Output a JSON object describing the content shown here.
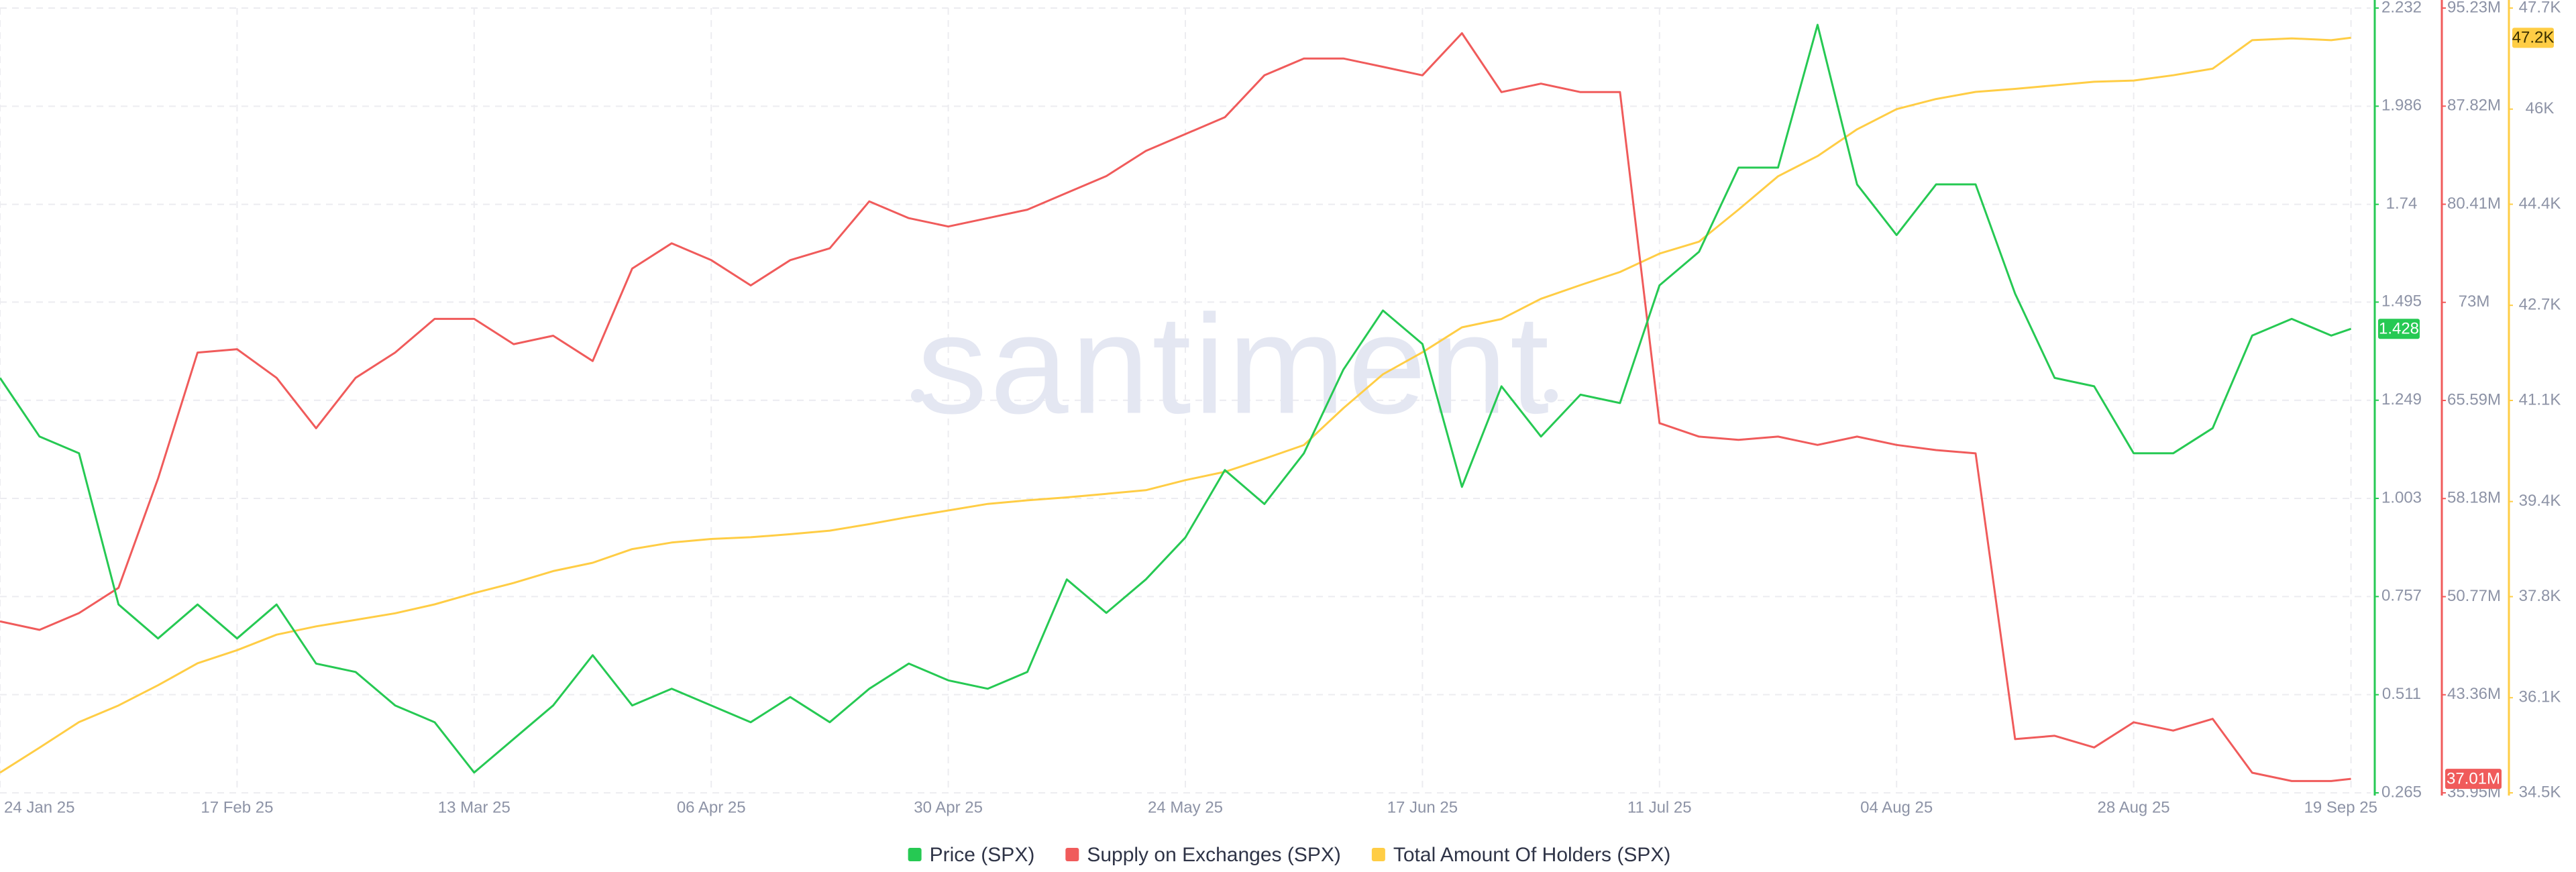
{
  "chart_data": {
    "type": "line",
    "watermark": "santiment",
    "x": [
      "2025-01-24",
      "2025-01-28",
      "2025-02-01",
      "2025-02-05",
      "2025-02-09",
      "2025-02-13",
      "2025-02-17",
      "2025-02-21",
      "2025-02-25",
      "2025-03-01",
      "2025-03-05",
      "2025-03-09",
      "2025-03-13",
      "2025-03-17",
      "2025-03-21",
      "2025-03-25",
      "2025-03-29",
      "2025-04-02",
      "2025-04-06",
      "2025-04-10",
      "2025-04-14",
      "2025-04-18",
      "2025-04-22",
      "2025-04-26",
      "2025-04-30",
      "2025-05-04",
      "2025-05-08",
      "2025-05-12",
      "2025-05-16",
      "2025-05-20",
      "2025-05-24",
      "2025-05-28",
      "2025-06-01",
      "2025-06-05",
      "2025-06-09",
      "2025-06-13",
      "2025-06-17",
      "2025-06-21",
      "2025-06-25",
      "2025-06-29",
      "2025-07-03",
      "2025-07-07",
      "2025-07-11",
      "2025-07-15",
      "2025-07-19",
      "2025-07-23",
      "2025-07-27",
      "2025-07-31",
      "2025-08-04",
      "2025-08-08",
      "2025-08-12",
      "2025-08-16",
      "2025-08-20",
      "2025-08-24",
      "2025-08-28",
      "2025-09-01",
      "2025-09-05",
      "2025-09-09",
      "2025-09-13",
      "2025-09-17",
      "2025-09-19"
    ],
    "xlim": [
      "2025-01-24",
      "2025-09-21"
    ],
    "xticks": [
      {
        "value": "2025-01-24",
        "label": "24 Jan 25"
      },
      {
        "value": "2025-02-17",
        "label": "17 Feb 25"
      },
      {
        "value": "2025-03-13",
        "label": "13 Mar 25"
      },
      {
        "value": "2025-04-06",
        "label": "06 Apr 25"
      },
      {
        "value": "2025-04-30",
        "label": "30 Apr 25"
      },
      {
        "value": "2025-05-24",
        "label": "24 May 25"
      },
      {
        "value": "2025-06-17",
        "label": "17 Jun 25"
      },
      {
        "value": "2025-07-11",
        "label": "11 Jul 25"
      },
      {
        "value": "2025-08-04",
        "label": "04 Aug 25"
      },
      {
        "value": "2025-08-28",
        "label": "28 Aug 25"
      },
      {
        "value": "2025-09-19",
        "label": "19 Sep 25"
      }
    ],
    "ylim": [
      0.265,
      2.232
    ],
    "yticks": [
      0.265,
      0.511,
      0.757,
      1.003,
      1.249,
      1.495,
      1.74,
      1.986,
      2.232
    ],
    "y2lim": [
      35.95,
      95.23
    ],
    "y2ticks": [
      {
        "value": 35.95,
        "label": "35.95M"
      },
      {
        "value": 43.36,
        "label": "43.36M"
      },
      {
        "value": 50.77,
        "label": "50.77M"
      },
      {
        "value": 58.18,
        "label": "58.18M"
      },
      {
        "value": 65.59,
        "label": "65.59M"
      },
      {
        "value": 73,
        "label": "73M"
      },
      {
        "value": 80.41,
        "label": "80.41M"
      },
      {
        "value": 87.82,
        "label": "87.82M"
      },
      {
        "value": 95.23,
        "label": "95.23M"
      }
    ],
    "y3lim": [
      34.5,
      47.7
    ],
    "y3ticks": [
      {
        "value": 34.5,
        "label": "34.5K"
      },
      {
        "value": 36.1,
        "label": "36.1K"
      },
      {
        "value": 37.8,
        "label": "37.8K"
      },
      {
        "value": 39.4,
        "label": "39.4K"
      },
      {
        "value": 41.1,
        "label": "41.1K"
      },
      {
        "value": 42.7,
        "label": "42.7K"
      },
      {
        "value": 44.4,
        "label": "44.4K"
      },
      {
        "value": 46,
        "label": "46K"
      },
      {
        "value": 47.7,
        "label": "47.7K"
      }
    ],
    "grid": true,
    "legend": "bottom",
    "series": [
      {
        "name": "Price (SPX)",
        "color": "#26c953",
        "axis": "y",
        "current": 1.428,
        "values": [
          1.305,
          1.158,
          1.116,
          0.737,
          0.652,
          0.737,
          0.652,
          0.737,
          0.589,
          0.568,
          0.484,
          0.442,
          0.316,
          0.4,
          0.484,
          0.61,
          0.484,
          0.526,
          0.484,
          0.442,
          0.505,
          0.442,
          0.526,
          0.589,
          0.547,
          0.526,
          0.568,
          0.8,
          0.716,
          0.8,
          0.905,
          1.074,
          0.989,
          1.116,
          1.326,
          1.474,
          1.39,
          1.032,
          1.284,
          1.158,
          1.263,
          1.242,
          1.537,
          1.621,
          1.832,
          1.832,
          2.19,
          1.79,
          1.663,
          1.79,
          1.79,
          1.516,
          1.305,
          1.284,
          1.116,
          1.116,
          1.179,
          1.411,
          1.453,
          1.411,
          1.428
        ]
      },
      {
        "name": "Supply on Exchanges (SPX)",
        "color": "#f05b5b",
        "axis": "y2",
        "current": {
          "value": 37.01,
          "label": "37.01M"
        },
        "values": [
          48.9,
          48.26,
          49.53,
          51.44,
          59.69,
          69.21,
          69.46,
          67.3,
          63.49,
          67.3,
          69.21,
          71.75,
          71.75,
          69.84,
          70.48,
          68.57,
          75.55,
          77.46,
          76.19,
          74.28,
          76.19,
          77.08,
          80.63,
          79.36,
          78.73,
          79.36,
          80.0,
          81.27,
          82.54,
          84.44,
          85.71,
          86.98,
          90.15,
          91.42,
          91.42,
          90.79,
          90.15,
          93.33,
          88.88,
          89.52,
          88.88,
          88.88,
          63.88,
          62.86,
          62.61,
          62.86,
          62.23,
          62.86,
          62.23,
          61.84,
          61.59,
          40.01,
          40.26,
          39.38,
          41.28,
          40.65,
          41.54,
          37.47,
          36.84,
          36.84,
          37.01
        ]
      },
      {
        "name": "Total Amount Of Holders (SPX)",
        "color": "#ffcd45",
        "axis": "y3",
        "current": {
          "value": 47.2,
          "label": "47.2K"
        },
        "values": [
          34.84,
          35.26,
          35.69,
          35.97,
          36.31,
          36.68,
          36.9,
          37.16,
          37.3,
          37.41,
          37.52,
          37.67,
          37.86,
          38.03,
          38.23,
          38.37,
          38.6,
          38.71,
          38.77,
          38.8,
          38.85,
          38.91,
          39.02,
          39.14,
          39.25,
          39.36,
          39.42,
          39.47,
          39.53,
          39.59,
          39.76,
          39.9,
          40.12,
          40.35,
          40.97,
          41.54,
          41.91,
          42.33,
          42.47,
          42.81,
          43.04,
          43.26,
          43.57,
          43.77,
          44.31,
          44.87,
          45.21,
          45.66,
          46.0,
          46.17,
          46.29,
          46.34,
          46.4,
          46.46,
          46.48,
          46.57,
          46.68,
          47.16,
          47.19,
          47.16,
          47.2
        ]
      }
    ]
  }
}
